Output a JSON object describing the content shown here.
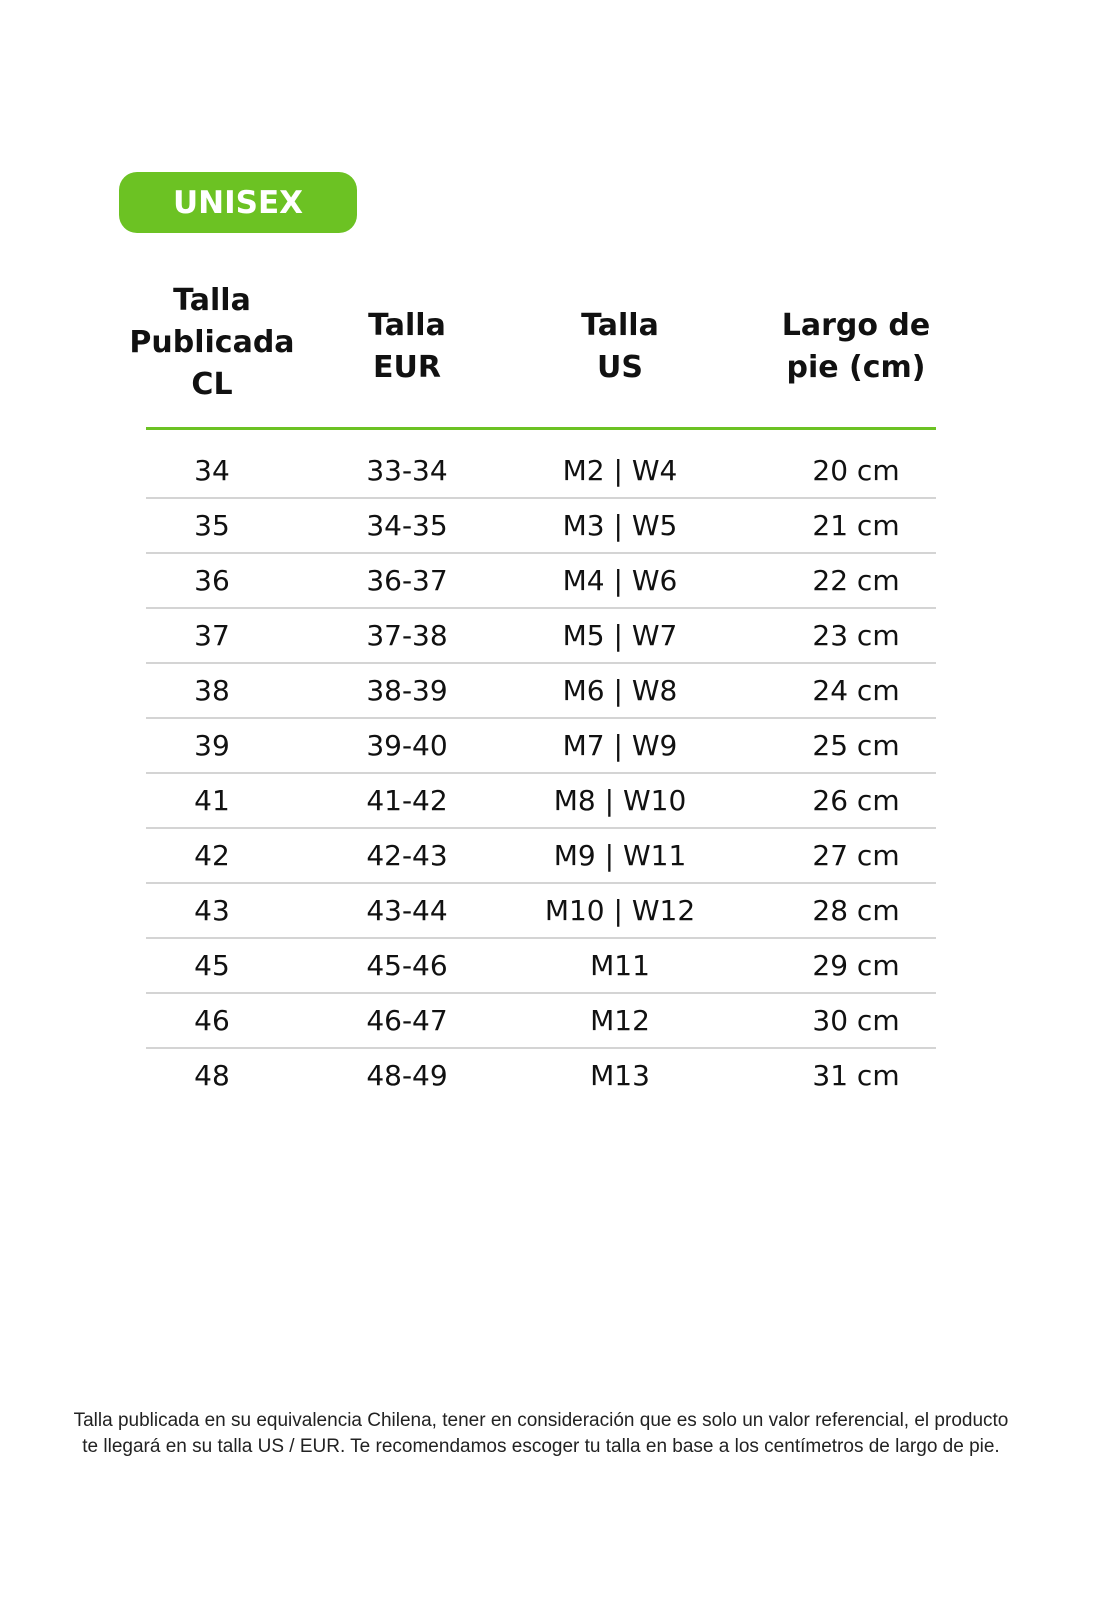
{
  "badge": "UNISEX",
  "colors": {
    "accent": "#6cc223",
    "divider": "#d4d4d4"
  },
  "headers": [
    [
      "Talla",
      "Publicada",
      "CL"
    ],
    [
      "Talla",
      "EUR"
    ],
    [
      "Talla",
      "US"
    ],
    [
      "Largo de",
      "pie (cm)"
    ]
  ],
  "rows": [
    [
      "34",
      "33-34",
      "M2 | W4",
      "20 cm"
    ],
    [
      "35",
      "34-35",
      "M3 | W5",
      "21 cm"
    ],
    [
      "36",
      "36-37",
      "M4 | W6",
      "22 cm"
    ],
    [
      "37",
      "37-38",
      "M5 | W7",
      "23 cm"
    ],
    [
      "38",
      "38-39",
      "M6 | W8",
      "24 cm"
    ],
    [
      "39",
      "39-40",
      "M7 | W9",
      "25 cm"
    ],
    [
      "41",
      "41-42",
      "M8 | W10",
      "26 cm"
    ],
    [
      "42",
      "42-43",
      "M9 | W11",
      "27 cm"
    ],
    [
      "43",
      "43-44",
      "M10 | W12",
      "28 cm"
    ],
    [
      "45",
      "45-46",
      "M11",
      "29 cm"
    ],
    [
      "46",
      "46-47",
      "M12",
      "30 cm"
    ],
    [
      "48",
      "48-49",
      "M13",
      "31 cm"
    ]
  ],
  "note": [
    "Talla publicada en su equivalencia Chilena, tener en consideración que es solo un valor referencial, el producto",
    "te llegará en su talla US / EUR. Te recomendamos escoger tu talla en base a los centímetros de largo de pie."
  ]
}
